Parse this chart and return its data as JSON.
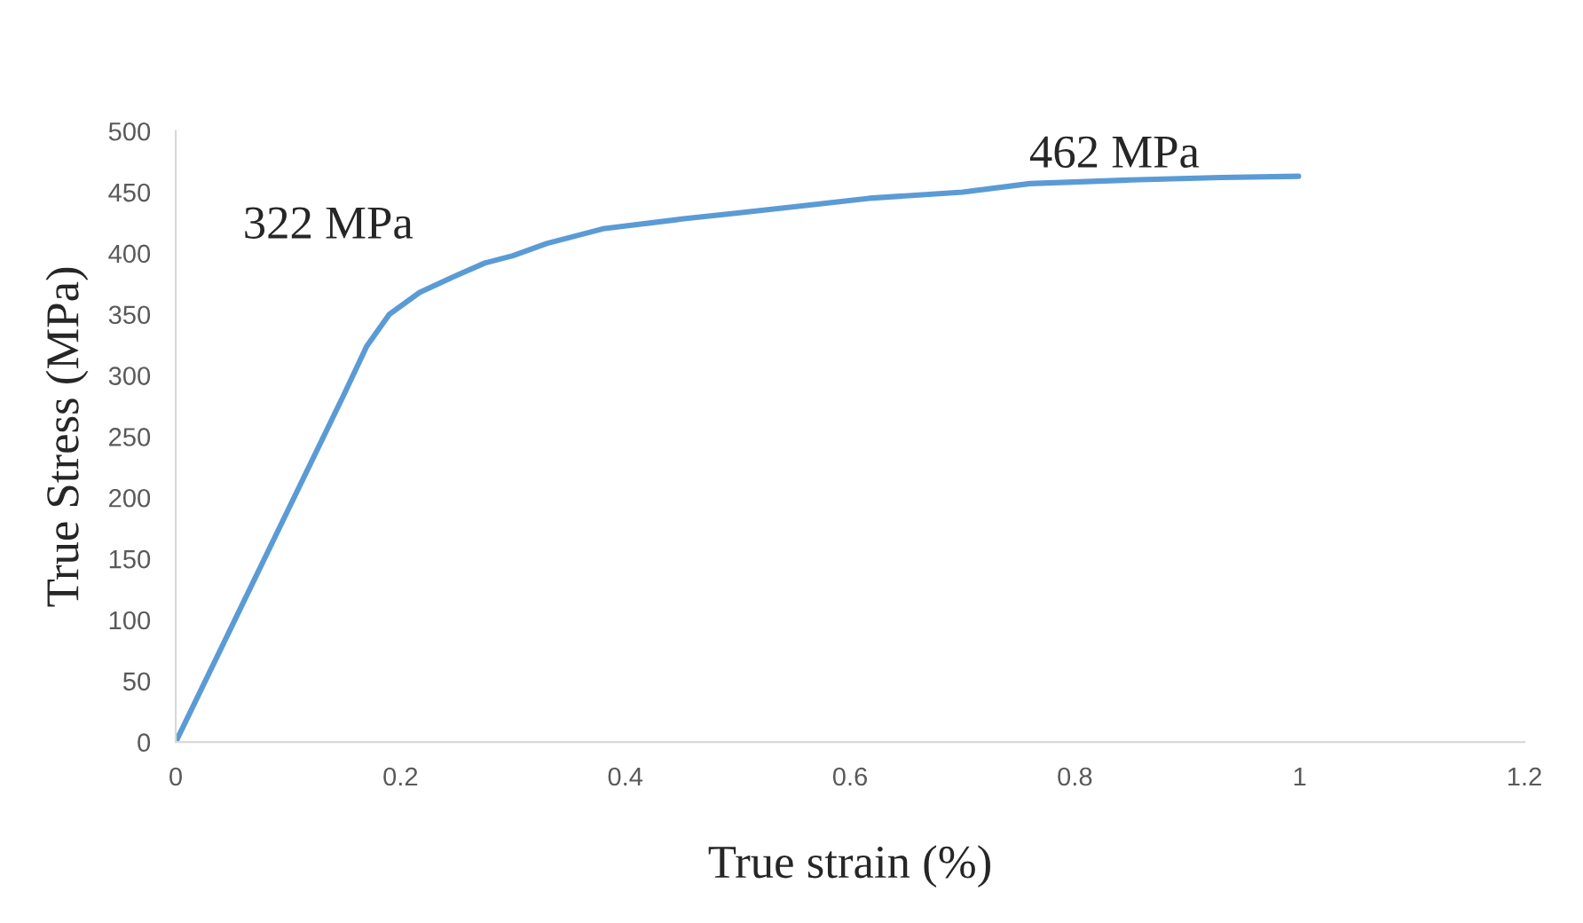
{
  "chart_data": {
    "type": "line",
    "xlabel": "True strain (%)",
    "ylabel": "True Stress (MPa)",
    "x": [
      0,
      0.05,
      0.1,
      0.15,
      0.17,
      0.19,
      0.217,
      0.25,
      0.275,
      0.3,
      0.33,
      0.38,
      0.45,
      0.5,
      0.55,
      0.617,
      0.7,
      0.76,
      0.85,
      0.93,
      0.999
    ],
    "series": [
      {
        "color": "#5b9bd5",
        "values": [
          0,
          95,
          190,
          285,
          324,
          350,
          368,
          382,
          392,
          398,
          408,
          420,
          428,
          433,
          438,
          445,
          450,
          457,
          460,
          462,
          463
        ]
      }
    ],
    "xlim": [
      0,
      1.2
    ],
    "xticks": [
      0,
      0.2,
      0.4,
      0.6,
      0.8,
      1,
      1.2
    ],
    "ylim": [
      0,
      500
    ],
    "yticks": [
      0,
      50,
      100,
      150,
      200,
      250,
      300,
      350,
      400,
      450,
      500
    ],
    "grid": false,
    "marker": "none",
    "line_style": "solid",
    "annotations": [
      "322 MPa",
      "462 MPa"
    ]
  }
}
